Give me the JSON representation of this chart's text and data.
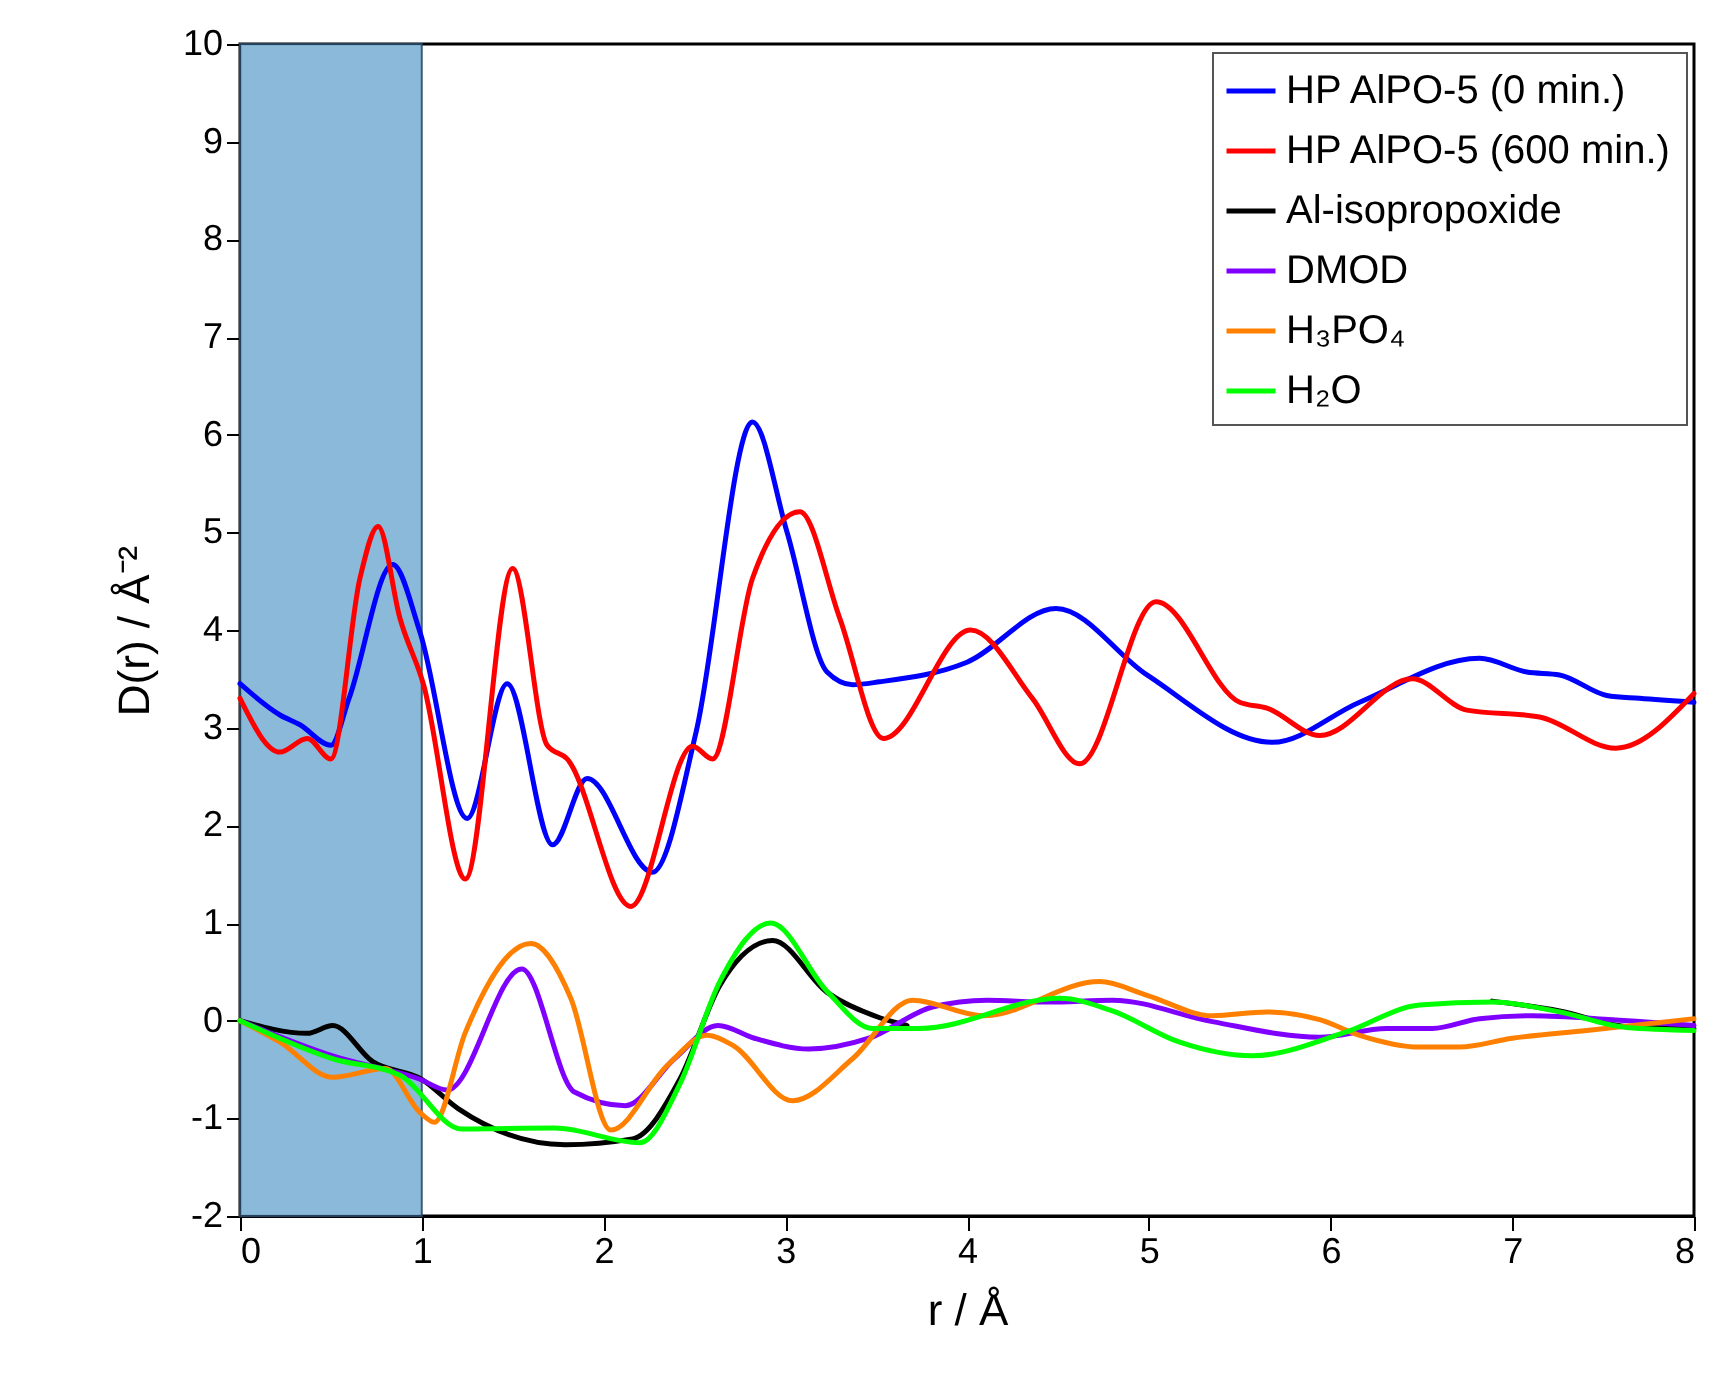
{
  "chart_data": {
    "type": "line",
    "xlabel": "r / Å",
    "ylabel": "D(r) / Å⁻²",
    "xlim": [
      0,
      8
    ],
    "xticks": [
      0,
      1,
      2,
      3,
      4,
      5,
      6,
      7,
      8
    ],
    "ylim": [
      -2,
      10
    ],
    "yticks": [
      -2,
      -1,
      0,
      1,
      2,
      3,
      4,
      5,
      6,
      7,
      8,
      9,
      10
    ],
    "grid": false,
    "legend": "top right",
    "line_style": "solid",
    "marker": "none",
    "bands": [
      {
        "axis": "x",
        "from": 0,
        "to": 1,
        "color": "#7fb2d6"
      }
    ],
    "series": [
      {
        "name": "HP AlPO-5 (0 min.)",
        "color": "#0000ff",
        "x": [
          0,
          0.22,
          0.33,
          0.5,
          0.6,
          0.84,
          0.99,
          1.25,
          1.47,
          1.72,
          1.91,
          2.27,
          2.51,
          2.82,
          3.01,
          3.23,
          3.37,
          3.52,
          4.0,
          4.49,
          4.99,
          5.68,
          6.16,
          6.82,
          7.08,
          7.26,
          7.52,
          7.7,
          8.0
        ],
        "values": [
          3.45,
          3.13,
          3.03,
          2.82,
          3.3,
          4.67,
          3.98,
          2.07,
          3.45,
          1.8,
          2.48,
          1.52,
          2.96,
          6.13,
          5.0,
          3.57,
          3.44,
          3.47,
          3.67,
          4.22,
          3.54,
          2.85,
          3.26,
          3.71,
          3.57,
          3.54,
          3.33,
          3.3,
          3.26
        ]
      },
      {
        "name": "HP AlPO-5 (600 min.)",
        "color": "#ff0000",
        "x": [
          0,
          0.22,
          0.37,
          0.5,
          0.66,
          0.76,
          0.88,
          1.01,
          1.24,
          1.5,
          1.69,
          1.8,
          2.15,
          2.49,
          2.6,
          2.82,
          3.08,
          3.3,
          3.54,
          4.02,
          4.36,
          4.62,
          5.04,
          5.5,
          5.65,
          5.94,
          6.45,
          6.75,
          7.15,
          7.57,
          8.0
        ],
        "values": [
          3.3,
          2.75,
          2.89,
          2.68,
          4.53,
          5.06,
          4.12,
          3.44,
          1.45,
          4.63,
          2.82,
          2.68,
          1.17,
          2.81,
          2.68,
          4.53,
          5.21,
          4.12,
          2.89,
          4.0,
          3.3,
          2.63,
          4.29,
          3.26,
          3.2,
          2.92,
          3.5,
          3.18,
          3.11,
          2.79,
          3.35
        ]
      },
      {
        "name": "Al-isopropoxide",
        "color": "#000000",
        "x": [
          0,
          0.37,
          0.51,
          0.73,
          1.0,
          1.2,
          1.79,
          2.16,
          2.42,
          2.64,
          2.93,
          3.23,
          3.52,
          3.67,
          4.51,
          4.8,
          5.17,
          5.57,
          6.08,
          6.49,
          6.89,
          7.26,
          7.63,
          8.0
        ],
        "values": [
          0,
          -0.13,
          -0.05,
          -0.42,
          -0.6,
          -0.9,
          -1.27,
          -1.21,
          -0.6,
          0.36,
          0.82,
          0.29,
          0.03,
          -0.05,
          null,
          null,
          null,
          null,
          null,
          null,
          0.2,
          0.1,
          -0.06,
          -0.08
        ]
      },
      {
        "name": "DMOD",
        "color": "#8000ff",
        "x": [
          0,
          0.51,
          0.99,
          1.14,
          1.55,
          1.84,
          2.12,
          2.39,
          2.63,
          2.83,
          3.13,
          3.46,
          3.81,
          4.11,
          4.44,
          4.8,
          5.35,
          5.94,
          6.31,
          6.56,
          6.82,
          7.11,
          7.55,
          8.0
        ],
        "values": [
          0,
          -0.36,
          -0.6,
          -0.71,
          0.53,
          -0.73,
          -0.87,
          -0.39,
          -0.05,
          -0.18,
          -0.29,
          -0.18,
          0.14,
          0.21,
          0.19,
          0.21,
          -0.01,
          -0.17,
          -0.08,
          -0.08,
          0.02,
          0.05,
          0.01,
          -0.05
        ]
      },
      {
        "name": "H₃PO₄",
        "color": "#ff8000",
        "x": [
          0,
          0.22,
          0.51,
          0.8,
          0.99,
          1.07,
          1.24,
          1.6,
          1.82,
          2.04,
          2.35,
          2.57,
          2.71,
          3.04,
          3.37,
          3.7,
          4.09,
          4.73,
          4.99,
          5.35,
          5.65,
          5.94,
          6.16,
          6.49,
          6.71,
          7.0,
          7.41,
          8.0
        ],
        "values": [
          0,
          -0.22,
          -0.58,
          -0.49,
          -0.94,
          -1.04,
          -0.12,
          0.79,
          0.23,
          -1.12,
          -0.46,
          -0.15,
          -0.25,
          -0.82,
          -0.39,
          0.21,
          0.05,
          0.4,
          0.26,
          0.05,
          0.09,
          0.01,
          -0.15,
          -0.27,
          -0.27,
          -0.18,
          -0.1,
          0.02
        ]
      },
      {
        "name": "H₂O",
        "color": "#00ff00",
        "x": [
          0,
          0.51,
          0.88,
          1.22,
          1.73,
          2.2,
          2.42,
          2.64,
          2.92,
          3.23,
          3.48,
          3.74,
          4.51,
          4.8,
          5.17,
          5.57,
          6.08,
          6.49,
          6.89,
          7.26,
          7.63,
          8.0
        ],
        "values": [
          0,
          -0.39,
          -0.56,
          -1.11,
          -1.1,
          -1.25,
          -0.65,
          0.4,
          1.0,
          0.3,
          -0.08,
          -0.08,
          0.23,
          0.1,
          -0.22,
          -0.36,
          -0.12,
          0.16,
          0.19,
          0.09,
          -0.07,
          -0.1
        ]
      }
    ]
  }
}
